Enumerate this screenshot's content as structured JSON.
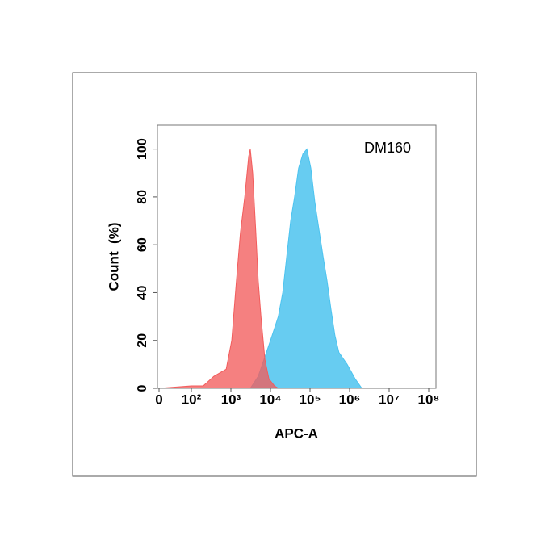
{
  "chart_data": {
    "type": "area",
    "annotation": "DM160",
    "xlabel": "APC-A",
    "ylabel": "Count  (%)",
    "xscale": "biexponential",
    "xlim": [
      0,
      100000000
    ],
    "xticks": [
      0,
      {
        "value": 100,
        "label": "10²"
      },
      {
        "value": 1000,
        "label": "10³"
      },
      {
        "value": 10000,
        "label": "10⁴"
      },
      {
        "value": 100000,
        "label": "10⁵"
      },
      {
        "value": 1000000,
        "label": "10⁶"
      },
      {
        "value": 10000000,
        "label": "10⁷"
      },
      {
        "value": 100000000,
        "label": "10⁸"
      }
    ],
    "ylim": [
      0,
      110
    ],
    "yticks": [
      0,
      20,
      40,
      60,
      80,
      100
    ],
    "series": [
      {
        "color": "#4cc3ef",
        "x": [
          3100,
          4900,
          7900,
          10000,
          12600,
          15800,
          20400,
          25700,
          32400,
          40700,
          51300,
          66100,
          83200,
          105000,
          132000,
          166000,
          214000,
          269000,
          339000,
          427000,
          537000,
          871000,
          1380000,
          2040000
        ],
        "values": [
          0,
          5,
          15,
          20,
          25,
          30,
          40,
          55,
          70,
          80,
          92,
          98,
          100,
          92,
          78,
          67,
          55,
          45,
          33,
          22,
          15,
          10,
          4,
          0
        ]
      },
      {
        "color": "#f25c5c",
        "x": [
          0,
          50,
          100,
          200,
          370,
          760,
          1050,
          1380,
          1740,
          2240,
          2820,
          3090,
          3550,
          4270,
          4900,
          5750,
          7240,
          9120,
          12600,
          15800
        ],
        "values": [
          0,
          0.5,
          1,
          1,
          5,
          8,
          20,
          45,
          65,
          80,
          97,
          100,
          90,
          65,
          45,
          30,
          12,
          4,
          1,
          0
        ]
      }
    ]
  }
}
